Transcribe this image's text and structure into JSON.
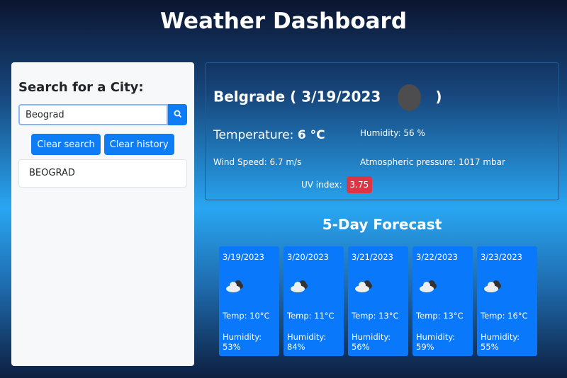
{
  "title": "Weather Dashboard",
  "sidebar": {
    "heading": "Search for a City:",
    "search_value": "Beograd",
    "search_icon": "search-icon",
    "clear_search": "Clear search",
    "clear_history": "Clear history",
    "history": [
      "BEOGRAD"
    ]
  },
  "current": {
    "city_date": "Belgrade ( 3/19/2023",
    "close_paren": ")",
    "temp_label": "Temperature:",
    "temp_value": "6 °C",
    "humidity": "Humidity: 56 %",
    "wind": "Wind Speed: 6.7 m/s",
    "pressure": "Atmospheric pressure: 1017 mbar",
    "uv_label": "UV index:",
    "uv_value": "3.75",
    "uv_color": "#dc3545"
  },
  "forecast": {
    "heading": "5-Day Forecast",
    "days": [
      {
        "date": "3/19/2023",
        "icon": "cloud-icon",
        "temp": "Temp: 10°C",
        "humidity": "Humidity: 53%"
      },
      {
        "date": "3/20/2023",
        "icon": "cloud-rain-icon",
        "temp": "Temp: 11°C",
        "humidity": "Humidity: 84%"
      },
      {
        "date": "3/21/2023",
        "icon": "cloud-icon",
        "temp": "Temp: 13°C",
        "humidity": "Humidity: 56%"
      },
      {
        "date": "3/22/2023",
        "icon": "cloud-icon",
        "temp": "Temp: 13°C",
        "humidity": "Humidity: 59%"
      },
      {
        "date": "3/23/2023",
        "icon": "cloud-icon",
        "temp": "Temp: 16°C",
        "humidity": "Humidity: 55%"
      }
    ]
  }
}
